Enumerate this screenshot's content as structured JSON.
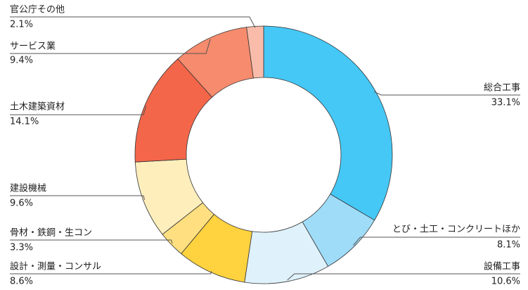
{
  "chart_data": {
    "type": "donut",
    "categories": [
      "総合工事",
      "とび・土工・コンクリートほか",
      "設備工事",
      "設計・測量・コンサル",
      "骨材・鉄鋼・生コン",
      "建設機械",
      "土木建築資材",
      "サービス業",
      "官公庁その他"
    ],
    "values": [
      33.1,
      8.1,
      10.6,
      8.6,
      3.3,
      9.6,
      14.1,
      9.4,
      2.1
    ],
    "value_labels": [
      "33.1%",
      "8.1%",
      "10.6%",
      "8.6%",
      "3.3%",
      "9.6%",
      "14.1%",
      "9.4%",
      "2.1%"
    ],
    "colors": [
      "#45c8f5",
      "#9fdcf8",
      "#dff1fb",
      "#ffd23f",
      "#ffdf7f",
      "#fdeebc",
      "#f4664a",
      "#f68b6d",
      "#f9bcaa"
    ]
  }
}
